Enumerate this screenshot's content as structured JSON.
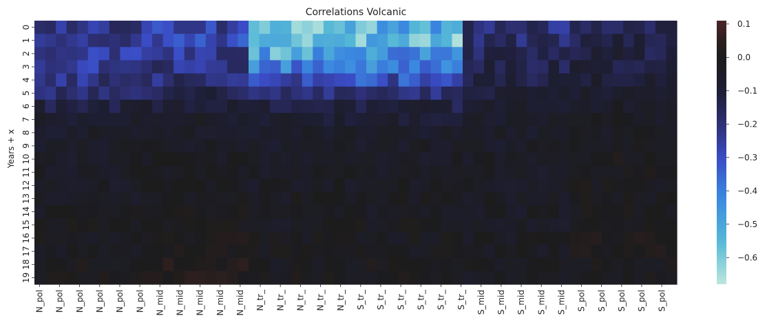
{
  "chart_data": {
    "type": "heatmap",
    "title": "Correlations Volcanic",
    "xlabel": "",
    "ylabel": "Years + x",
    "y_ticks": [
      "0",
      "1",
      "2",
      "3",
      "4",
      "5",
      "6",
      "7",
      "8",
      "9",
      "10",
      "11",
      "12",
      "13",
      "14",
      "15",
      "16",
      "17",
      "18",
      "19"
    ],
    "x_tick_labels": [
      "N_pol",
      "N_pol",
      "N_pol",
      "N_pol",
      "N_pol",
      "N_pol",
      "N_mid",
      "N_mid",
      "N_mid",
      "N_mid",
      "N_mid",
      "N_tr_",
      "N_tr_",
      "N_tr_",
      "N_tr_",
      "N_tr_",
      "S_tr_",
      "S_tr_",
      "S_tr_",
      "S_tr_",
      "S_tr_",
      "S_tr_",
      "S_mid",
      "S_mid",
      "S_mid",
      "S_mid",
      "S_mid",
      "S_pol",
      "S_pol",
      "S_pol",
      "S_pol",
      "S_pol"
    ],
    "regions": [
      "N_pol",
      "N_mid",
      "N_tr_",
      "S_tr_",
      "S_mid",
      "S_pol"
    ],
    "region_columns": 10,
    "columns_per_tick": 2,
    "vmin": -0.68,
    "vmax": 0.11,
    "colorbar_ticks": [
      0.1,
      0.0,
      -0.1,
      -0.2,
      -0.3,
      -0.4,
      -0.5,
      -0.6
    ],
    "colorbar_tick_labels": [
      "0.1",
      "0.0",
      "−0.1",
      "−0.2",
      "−0.3",
      "−0.4",
      "−0.5",
      "−0.6"
    ],
    "colormap": "icefire",
    "colormap_stops": [
      {
        "v": -0.68,
        "color": "#bde6dd"
      },
      {
        "v": -0.55,
        "color": "#55b8d6"
      },
      {
        "v": -0.42,
        "color": "#3a88e0"
      },
      {
        "v": -0.3,
        "color": "#3a4bc4"
      },
      {
        "v": -0.2,
        "color": "#2d2f72"
      },
      {
        "v": -0.1,
        "color": "#1e1e35"
      },
      {
        "v": 0.0,
        "color": "#1c1c1c"
      },
      {
        "v": 0.05,
        "color": "#2e1f1f"
      },
      {
        "v": 0.11,
        "color": "#4a2528"
      }
    ],
    "values_by_lag_and_region": {
      "description_of_rows": "Estimated mean correlation per lag (rows 0-19) for each region block",
      "N_pol": [
        -0.22,
        -0.24,
        -0.26,
        -0.26,
        -0.22,
        -0.18,
        -0.12,
        -0.07,
        -0.06,
        -0.05,
        -0.04,
        -0.04,
        -0.04,
        -0.04,
        -0.03,
        -0.02,
        -0.02,
        -0.02,
        -0.01,
        -0.01
      ],
      "N_mid": [
        -0.26,
        -0.3,
        -0.24,
        -0.22,
        -0.2,
        -0.14,
        -0.09,
        -0.06,
        -0.05,
        -0.04,
        -0.03,
        -0.02,
        -0.02,
        -0.02,
        -0.01,
        0.0,
        0.0,
        0.01,
        0.02,
        0.02
      ],
      "N_tr_": [
        -0.55,
        -0.55,
        -0.5,
        -0.42,
        -0.3,
        -0.2,
        -0.13,
        -0.08,
        -0.06,
        -0.05,
        -0.04,
        -0.04,
        -0.04,
        -0.03,
        -0.03,
        -0.03,
        -0.02,
        -0.02,
        -0.02,
        -0.01
      ],
      "S_tr_": [
        -0.52,
        -0.55,
        -0.45,
        -0.42,
        -0.3,
        -0.2,
        -0.12,
        -0.08,
        -0.06,
        -0.05,
        -0.04,
        -0.04,
        -0.03,
        -0.03,
        -0.03,
        -0.02,
        -0.02,
        -0.02,
        -0.01,
        -0.01
      ],
      "S_mid": [
        -0.2,
        -0.18,
        -0.16,
        -0.14,
        -0.12,
        -0.1,
        -0.08,
        -0.06,
        -0.05,
        -0.05,
        -0.05,
        -0.05,
        -0.04,
        -0.04,
        -0.04,
        -0.04,
        -0.03,
        -0.03,
        -0.03,
        -0.03
      ],
      "S_pol": [
        -0.14,
        -0.14,
        -0.12,
        -0.11,
        -0.09,
        -0.07,
        -0.05,
        -0.04,
        -0.03,
        -0.02,
        -0.01,
        -0.01,
        -0.02,
        -0.02,
        -0.01,
        0.0,
        0.01,
        0.0,
        -0.01,
        -0.01
      ]
    }
  }
}
